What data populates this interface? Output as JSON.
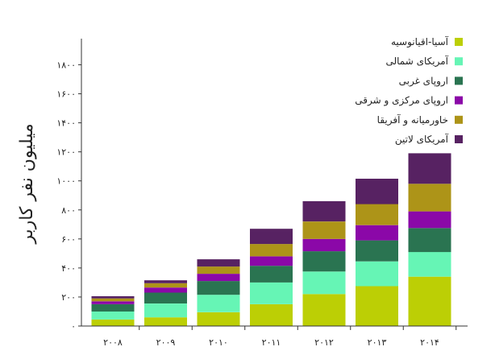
{
  "chart_data": {
    "type": "bar",
    "stacked": true,
    "title": "",
    "xlabel": "",
    "ylabel": "میلیون نفر کاربر",
    "categories": [
      "۲۰۰۸",
      "۲۰۰۹",
      "۲۰۱۰",
      "۲۰۱۱",
      "۲۰۱۲",
      "۲۰۱۳",
      "۲۰۱۴"
    ],
    "yticks": [
      0,
      200,
      400,
      600,
      800,
      1000,
      1200,
      1400,
      1600,
      1800
    ],
    "ytick_labels": [
      "۰",
      "۲۰۰",
      "۴۰۰",
      "۶۰۰",
      "۸۰۰",
      "۱۰۰۰",
      "۱۲۰۰",
      "۱۴۰۰",
      "۱۶۰۰",
      "۱۸۰۰"
    ],
    "ylim": [
      0,
      1980
    ],
    "grid": false,
    "legend_position": "top-right",
    "series": [
      {
        "name": "آسیا-اقیانوسیه",
        "color": "#bccf05",
        "values": [
          45,
          60,
          95,
          150,
          220,
          275,
          340
        ]
      },
      {
        "name": "آمریکای شمالی",
        "color": "#66f5b5",
        "values": [
          55,
          95,
          120,
          150,
          155,
          170,
          170
        ]
      },
      {
        "name": "اروپای غربی",
        "color": "#2a7451",
        "values": [
          50,
          75,
          95,
          115,
          140,
          145,
          165
        ]
      },
      {
        "name": "اروپای مرکزی و شرقی",
        "color": "#8b08a8",
        "values": [
          20,
          35,
          50,
          65,
          85,
          105,
          115
        ]
      },
      {
        "name": "خاورمیانه و آفریقا",
        "color": "#ad9418",
        "values": [
          20,
          30,
          50,
          85,
          120,
          145,
          190
        ]
      },
      {
        "name": "آمریکای لاتین",
        "color": "#572262",
        "values": [
          15,
          20,
          50,
          105,
          140,
          175,
          210
        ]
      }
    ]
  }
}
